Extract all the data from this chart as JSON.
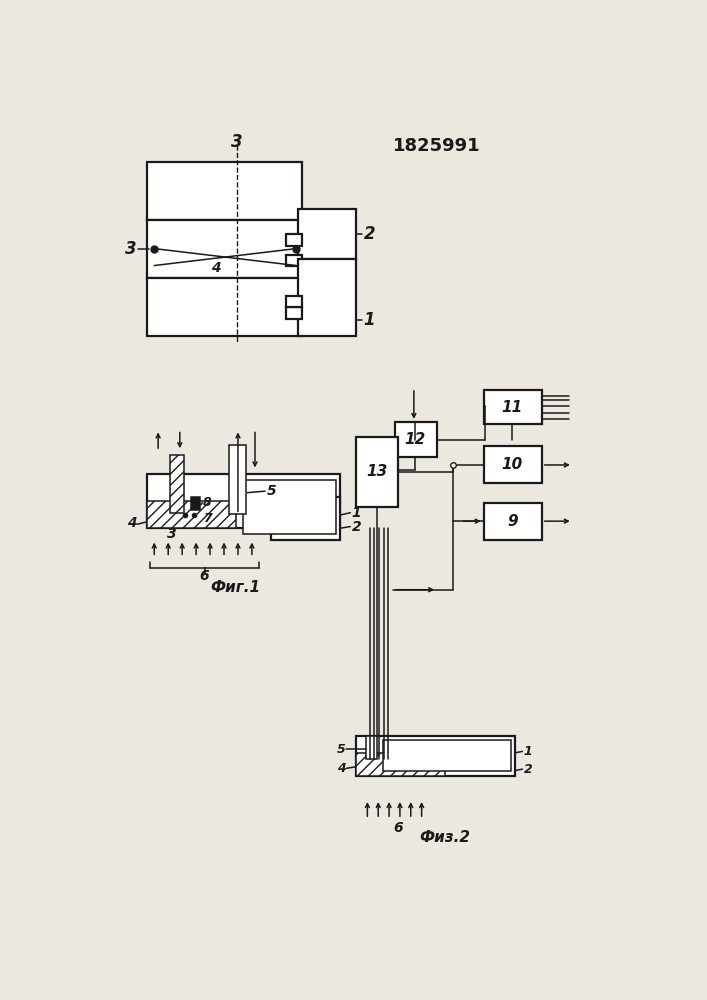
{
  "title": "1825991",
  "fig1_label": "Фиг.1",
  "fig2_label": "Физ.2",
  "bg_color": "#ece8e0",
  "line_color": "#1a1a1a"
}
